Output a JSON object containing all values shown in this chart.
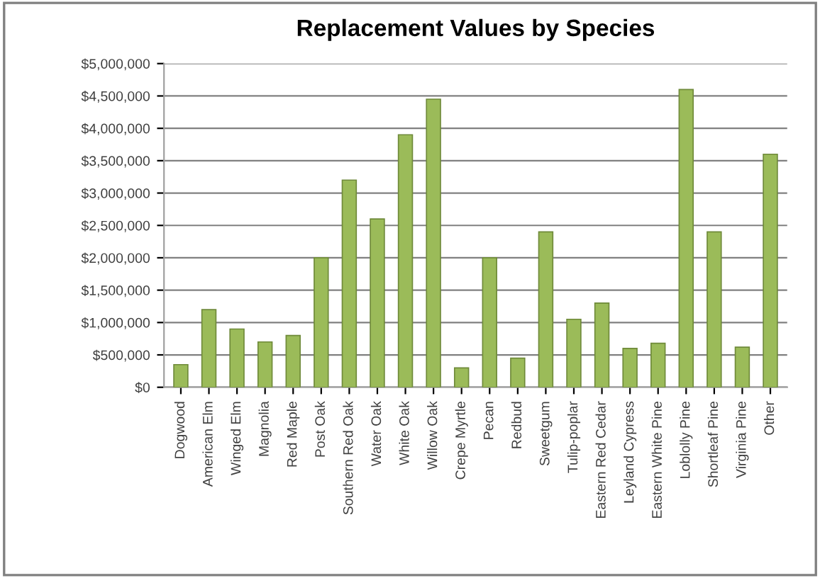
{
  "chart_data": {
    "type": "bar",
    "title": "Replacement Values by Species",
    "categories": [
      "Dogwood",
      "American Elm",
      "Winged Elm",
      "Magnolia",
      "Red Maple",
      "Post Oak",
      "Southern Red Oak",
      "Water Oak",
      "White Oak",
      "Willow Oak",
      "Crepe Myrtle",
      "Pecan",
      "Redbud",
      "Sweetgum",
      "Tulip-poplar",
      "Eastern Red Cedar",
      "Leyland Cypress",
      "Eastern White Pine",
      "Loblolly Pine",
      "Shortleaf Pine",
      "Virginia Pine",
      "Other"
    ],
    "values": [
      350000,
      1200000,
      900000,
      700000,
      800000,
      2000000,
      3200000,
      2600000,
      3900000,
      4450000,
      300000,
      2000000,
      450000,
      2400000,
      1050000,
      1300000,
      600000,
      680000,
      4600000,
      2400000,
      620000,
      3600000
    ],
    "color": "#9bbb59",
    "ylim": [
      0,
      5000000
    ],
    "yticks": [
      {
        "value": 0,
        "label": "$0"
      },
      {
        "value": 500000,
        "label": "$500,000"
      },
      {
        "value": 1000000,
        "label": "$1,000,000"
      },
      {
        "value": 1500000,
        "label": "$1,500,000"
      },
      {
        "value": 2000000,
        "label": "$2,000,000"
      },
      {
        "value": 2500000,
        "label": "$2,500,000"
      },
      {
        "value": 3000000,
        "label": "$3,000,000"
      },
      {
        "value": 3500000,
        "label": "$3,500,000"
      },
      {
        "value": 4000000,
        "label": "$4,000,000"
      },
      {
        "value": 4500000,
        "label": "$4,500,000"
      },
      {
        "value": 5000000,
        "label": "$5,000,000"
      }
    ],
    "grid": "y"
  }
}
